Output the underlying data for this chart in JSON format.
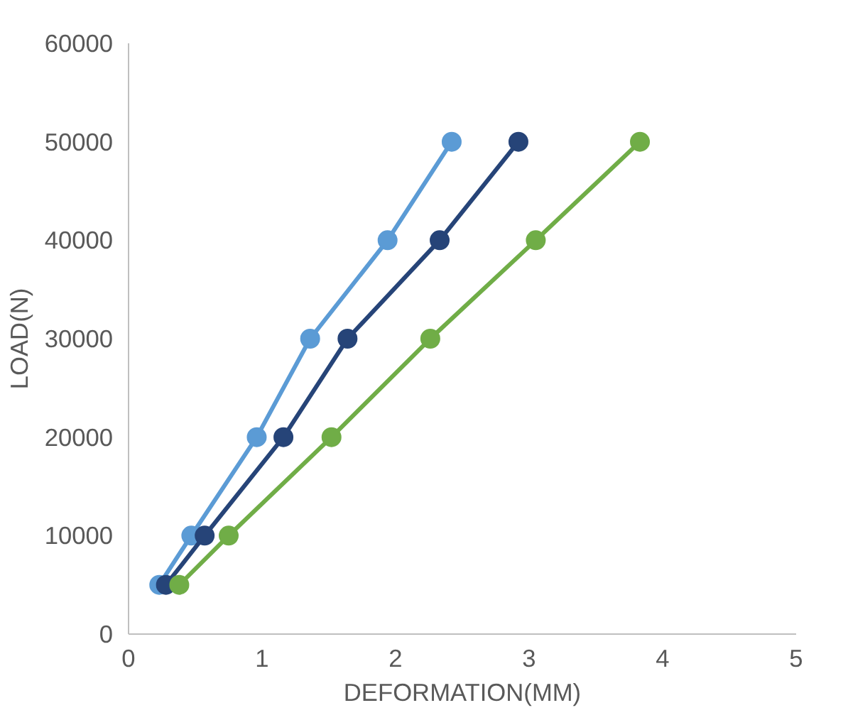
{
  "chart_data": {
    "type": "line",
    "xlabel": "DEFORMATION(MM)",
    "ylabel": "LOAD(N)",
    "xlim": [
      0,
      5
    ],
    "xticks": [
      0,
      1,
      2,
      3,
      4,
      5
    ],
    "ylim": [
      0,
      60000
    ],
    "yticks": [
      0,
      10000,
      20000,
      30000,
      40000,
      50000,
      60000
    ],
    "grid": false,
    "marker": "circle",
    "line_style": "solid",
    "series": [
      {
        "color": "#5b9bd5",
        "x": [
          0.23,
          0.47,
          0.96,
          1.36,
          1.94,
          2.42
        ],
        "values": [
          5000,
          10000,
          20000,
          30000,
          40000,
          50000
        ]
      },
      {
        "color": "#264478",
        "x": [
          0.28,
          0.57,
          1.16,
          1.64,
          2.33,
          2.92
        ],
        "values": [
          5000,
          10000,
          20000,
          30000,
          40000,
          50000
        ]
      },
      {
        "color": "#70ad47",
        "x": [
          0.38,
          0.75,
          1.52,
          2.26,
          3.05,
          3.83
        ],
        "values": [
          5000,
          10000,
          20000,
          30000,
          40000,
          50000
        ]
      }
    ]
  }
}
